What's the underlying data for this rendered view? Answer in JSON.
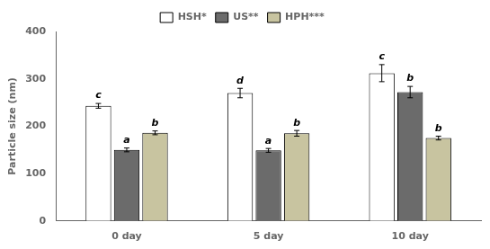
{
  "chart_data": {
    "type": "bar",
    "categories": [
      "0 day",
      "5 day",
      "10 day"
    ],
    "series": [
      {
        "name": "HSH*",
        "color": "white",
        "values": [
          243,
          270,
          312
        ],
        "errors": [
          5,
          10,
          18
        ],
        "letters": [
          "c",
          "d",
          "c"
        ]
      },
      {
        "name": "US**",
        "color": "#6b6b6b",
        "values": [
          150,
          149,
          272
        ],
        "errors": [
          4,
          4,
          12
        ],
        "letters": [
          "a",
          "a",
          "b"
        ]
      },
      {
        "name": "HPH***",
        "color": "#c8c4a0",
        "values": [
          186,
          185,
          175
        ],
        "errors": [
          4,
          6,
          4
        ],
        "letters": [
          "b",
          "b",
          "b"
        ]
      }
    ],
    "ylabel": "Particle size (nm)",
    "ylim": [
      0,
      400
    ],
    "yticks": [
      0,
      100,
      200,
      300,
      400
    ],
    "grid": false,
    "legend": "top"
  }
}
